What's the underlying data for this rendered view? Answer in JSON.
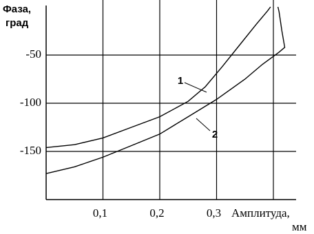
{
  "chart_data": {
    "type": "line",
    "ylabel": [
      "Фаза,",
      "град"
    ],
    "xlabel": [
      "Амплитуда,",
      "мм"
    ],
    "xlim": [
      0,
      0.44
    ],
    "ylim": [
      -200,
      0
    ],
    "xticks": [
      {
        "value": 0.1,
        "label": "0,1"
      },
      {
        "value": 0.2,
        "label": "0,2"
      },
      {
        "value": 0.3,
        "label": "0,3"
      },
      {
        "value": 0.4,
        "label": null
      }
    ],
    "yticks": [
      -50,
      -100,
      -150
    ],
    "grid": true,
    "series": [
      {
        "name": "1",
        "color": "#000000",
        "x": [
          0,
          0.05,
          0.1,
          0.15,
          0.2,
          0.25,
          0.28,
          0.31,
          0.34,
          0.37,
          0.39,
          0.395
        ],
        "values": [
          -146,
          -143,
          -136,
          -125,
          -114,
          -98,
          -83,
          -62,
          -40,
          -18,
          -4,
          0
        ]
      },
      {
        "name": "2",
        "color": "#000000",
        "x": [
          0,
          0.05,
          0.1,
          0.15,
          0.2,
          0.25,
          0.3,
          0.35,
          0.38,
          0.41,
          0.42,
          0.415,
          0.41,
          0.408
        ],
        "values": [
          -173,
          -166,
          -156,
          -144,
          -132,
          -114,
          -96,
          -75,
          -60,
          -47,
          -42,
          -25,
          -5,
          0
        ]
      }
    ]
  }
}
